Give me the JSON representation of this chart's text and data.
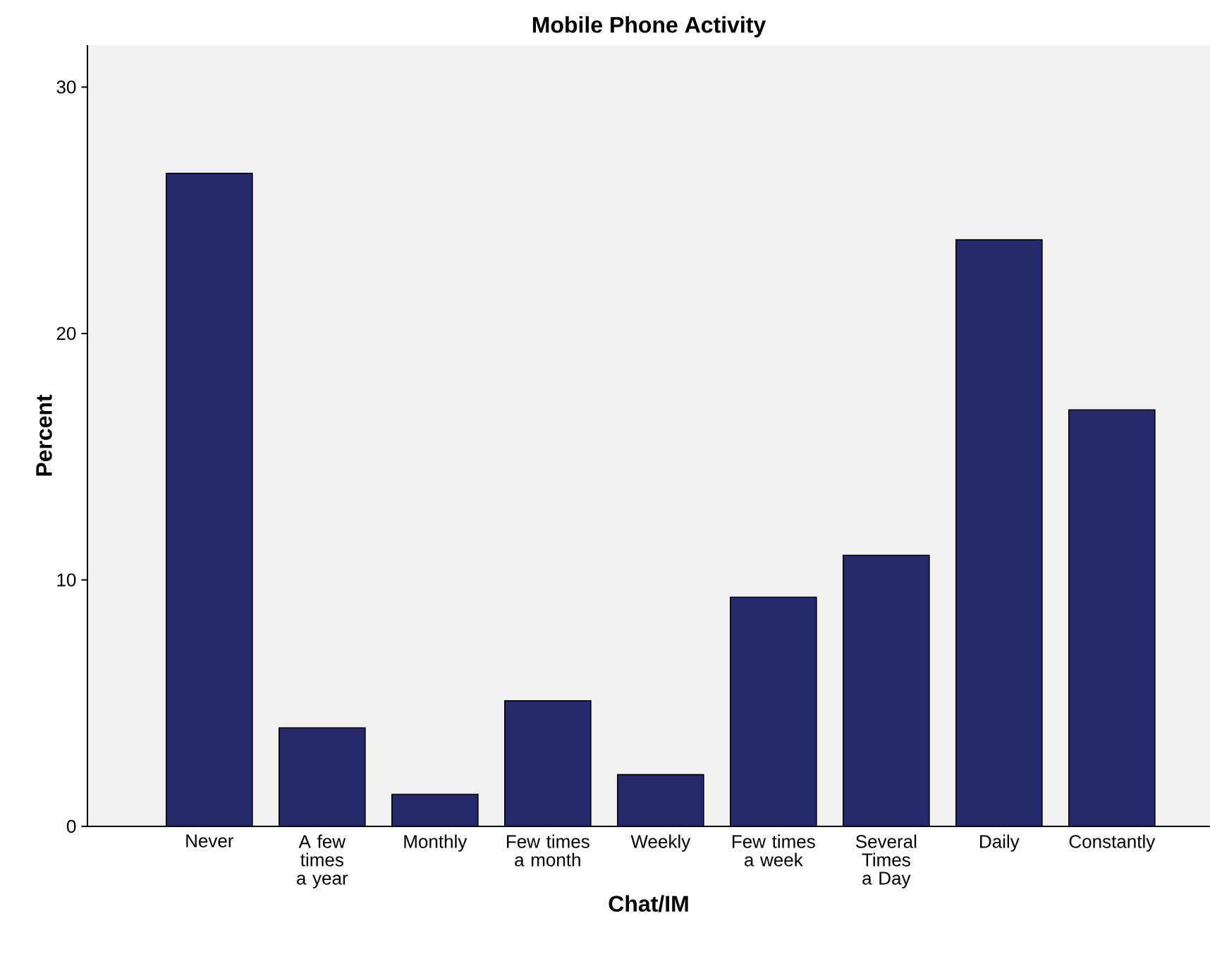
{
  "chart_data": {
    "type": "bar",
    "title": "Mobile Phone Activity",
    "xlabel": "Chat/IM",
    "ylabel": "Percent",
    "categories": [
      "Never",
      "A few times a year",
      "Monthly",
      "Few times a month",
      "Weekly",
      "Few times a week",
      "Several Times a Day",
      "Daily",
      "Constantly"
    ],
    "values": [
      26.5,
      4.0,
      1.3,
      5.1,
      2.1,
      9.3,
      11.0,
      23.8,
      16.9
    ],
    "color": "#262a6b",
    "ylim": [
      0,
      31.7
    ],
    "yticks": [
      0,
      10,
      20,
      30
    ],
    "grid": false
  }
}
